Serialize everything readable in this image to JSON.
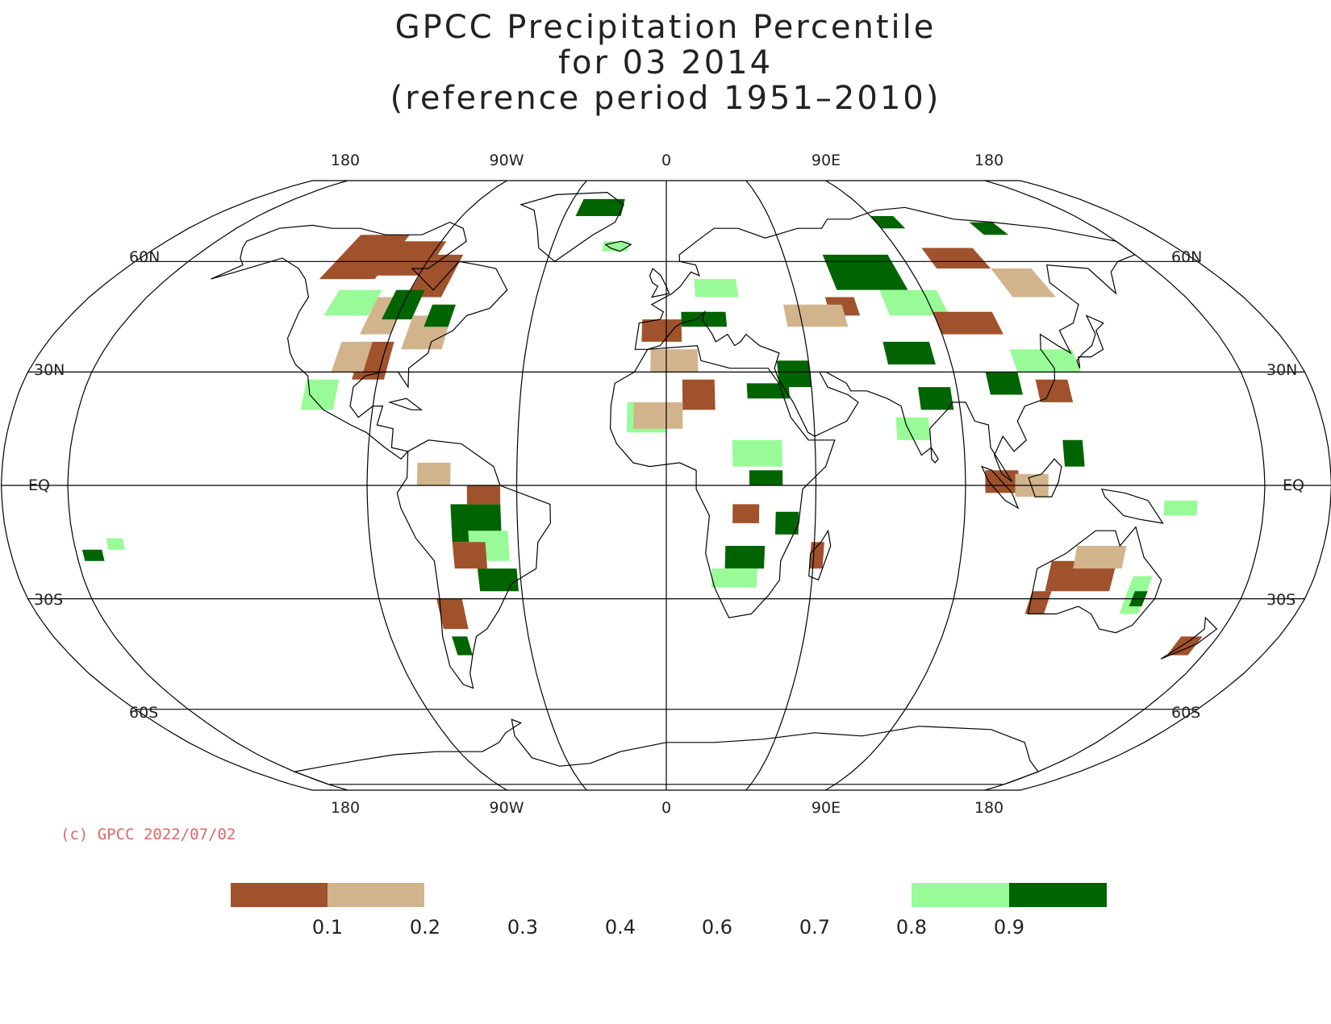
{
  "title": {
    "line1": "GPCC Precipitation Percentile",
    "line2": "for 03 2014",
    "line3": "(reference period 1951–2010)"
  },
  "map": {
    "projection": "Robinson",
    "lon_labels_top": [
      "180",
      "90W",
      "0",
      "90E",
      "180"
    ],
    "lon_labels_bottom": [
      "180",
      "90W",
      "0",
      "90E",
      "180"
    ],
    "lat_labels": {
      "n60": "60N",
      "n30": "30N",
      "eq": "EQ",
      "s30": "30S",
      "s60": "60S"
    },
    "colors": {
      "very_dry": "#a0522d",
      "dry": "#d2b48c",
      "wet": "#98fb98",
      "very_wet": "#006400",
      "coast": "#000000",
      "grid": "#000000"
    }
  },
  "copyright": "(c) GPCC 2022/07/02",
  "legend": {
    "ticks": [
      "0.1",
      "0.2",
      "0.3",
      "0.4",
      "0.6",
      "0.7",
      "0.8",
      "0.9"
    ],
    "bins": [
      {
        "range": "< 0.1",
        "color": "#a0522d"
      },
      {
        "range": "0.1 – 0.2",
        "color": "#d2b48c"
      },
      {
        "range": "0.2 – 0.8",
        "color": "#ffffff"
      },
      {
        "range": "0.8 – 0.9",
        "color": "#98fb98"
      },
      {
        "range": "> 0.9",
        "color": "#006400"
      }
    ]
  }
}
